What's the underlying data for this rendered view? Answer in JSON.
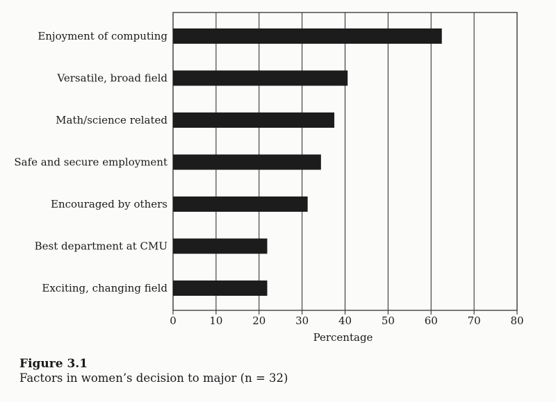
{
  "figure": {
    "label": "Figure 3.1",
    "caption": "Factors in women’s decision to major (n = 32)"
  },
  "chart_data": {
    "type": "bar",
    "orientation": "horizontal",
    "categories": [
      "Enjoyment of computing",
      "Versatile, broad field",
      "Math/science related",
      "Safe and secure employment",
      "Encouraged by others",
      "Best department at CMU",
      "Exciting, changing field"
    ],
    "values": [
      62.5,
      40.6,
      37.5,
      34.4,
      31.3,
      21.9,
      21.9
    ],
    "xlabel": "Percentage",
    "ylabel": "",
    "xlim": [
      0,
      80
    ],
    "xticks": [
      0,
      10,
      20,
      30,
      40,
      50,
      60,
      70,
      80
    ],
    "grid": true,
    "bar_color": "#1c1c1c",
    "grid_color": "#333333"
  }
}
